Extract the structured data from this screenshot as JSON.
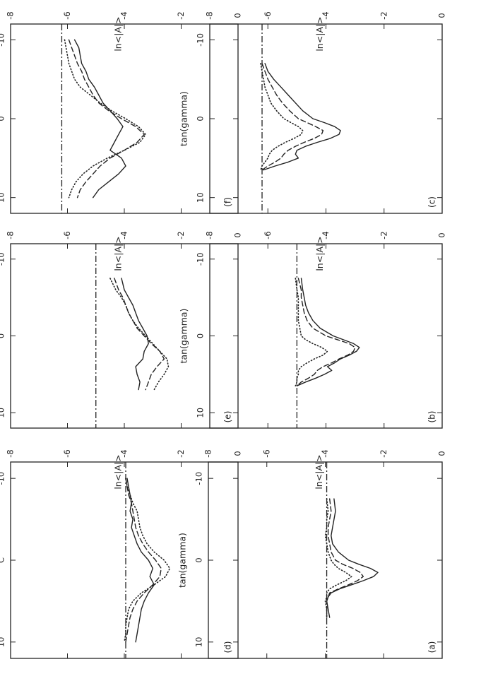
{
  "figure": {
    "orientation": "rotated 90 degrees counter-clockwise (landscape figure scanned in portrait)"
  },
  "style": {
    "ink": "#222222",
    "paper": "#ffffff",
    "line_styles": [
      "solid",
      "dashed",
      "dotted",
      "dash-dot"
    ]
  },
  "chart_data": [
    {
      "type": "line",
      "panel": "(a)",
      "xlabel": "tan(gamma)",
      "ylabel": "ln<|A|>",
      "xlim": [
        -12,
        12
      ],
      "ylim": [
        -8,
        0
      ],
      "xticks": [
        -10,
        0,
        10
      ],
      "xtick_labels": [
        "-10",
        "0",
        "10"
      ],
      "yticks": [
        0,
        -2,
        -4,
        -6,
        -8
      ],
      "ytick_labels": [
        "0",
        "-2",
        "-4",
        "-6",
        "-8"
      ],
      "baseline": -3.95,
      "series": [
        {
          "style": "solid",
          "x": [
            -7.5,
            -6,
            -5,
            -4,
            -3,
            -2,
            -1,
            0,
            0.5,
            1,
            1.5,
            2,
            2.5,
            3,
            3.5,
            4,
            4.5,
            5,
            6,
            7
          ],
          "y": [
            -3.7,
            -3.65,
            -3.7,
            -3.75,
            -3.8,
            -3.75,
            -3.55,
            -3.2,
            -2.85,
            -2.45,
            -2.2,
            -2.35,
            -2.7,
            -3.1,
            -3.5,
            -3.8,
            -3.9,
            -3.95,
            -3.9,
            -3.85
          ]
        },
        {
          "style": "dashed",
          "x": [
            -7.5,
            -6,
            -5,
            -4,
            -3,
            -2,
            -1,
            0,
            0.5,
            1,
            1.5,
            2,
            2.5,
            3,
            3.5,
            4,
            4.5,
            5,
            6,
            7
          ],
          "y": [
            -3.85,
            -3.8,
            -3.85,
            -3.9,
            -3.9,
            -3.85,
            -3.8,
            -3.65,
            -3.4,
            -3.05,
            -2.8,
            -2.7,
            -2.9,
            -3.2,
            -3.55,
            -3.85,
            -3.9,
            -3.95,
            -3.95,
            -3.95
          ]
        },
        {
          "style": "dotted",
          "x": [
            -7.5,
            -6,
            -5,
            -4,
            -3,
            -2,
            -1,
            0,
            0.5,
            1,
            1.5,
            2,
            2.5,
            3,
            3.5,
            4,
            4.5,
            5,
            6,
            7
          ],
          "y": [
            -3.95,
            -3.9,
            -3.95,
            -3.95,
            -4.0,
            -3.95,
            -3.9,
            -3.8,
            -3.7,
            -3.55,
            -3.3,
            -3.1,
            -3.3,
            -3.6,
            -3.85,
            -3.95,
            -3.95,
            -4.0,
            -3.95,
            -3.95
          ]
        }
      ]
    },
    {
      "type": "line",
      "panel": "(b)",
      "xlabel": "tan(gamma)",
      "ylabel": "ln<|A|>",
      "xlim": [
        -12,
        12
      ],
      "ylim": [
        -8,
        0
      ],
      "xticks": [
        -10,
        0,
        10
      ],
      "xtick_labels": [
        "-10",
        "0",
        "10"
      ],
      "yticks": [
        0,
        -2,
        -4,
        -6,
        -8
      ],
      "ytick_labels": [
        "0",
        "-2",
        "-4",
        "-6",
        "-8"
      ],
      "baseline": -5.0,
      "series": [
        {
          "style": "solid",
          "x": [
            -7.5,
            -6,
            -5,
            -4,
            -3,
            -2,
            -1,
            0,
            0.5,
            1,
            1.5,
            2,
            2.5,
            3,
            3.5,
            4,
            4.5,
            5,
            5.5,
            6,
            6.5
          ],
          "y": [
            -4.85,
            -4.8,
            -4.75,
            -4.7,
            -4.6,
            -4.45,
            -4.2,
            -3.75,
            -3.4,
            -3.05,
            -2.85,
            -2.95,
            -3.2,
            -3.5,
            -3.7,
            -3.95,
            -3.8,
            -4.05,
            -4.35,
            -4.7,
            -5.0
          ]
        },
        {
          "style": "dashed",
          "x": [
            -7.5,
            -6,
            -5,
            -4,
            -3,
            -2,
            -1,
            0,
            0.5,
            1,
            1.5,
            2,
            2.5,
            3,
            3.5,
            4,
            4.5,
            5,
            5.5,
            6,
            6.5
          ],
          "y": [
            -4.95,
            -4.85,
            -4.85,
            -4.8,
            -4.75,
            -4.65,
            -4.45,
            -4.0,
            -3.6,
            -3.2,
            -3.0,
            -3.05,
            -3.25,
            -3.55,
            -3.8,
            -4.1,
            -4.3,
            -4.4,
            -4.6,
            -4.85,
            -5.0
          ]
        },
        {
          "style": "dotted",
          "x": [
            -7.5,
            -6,
            -5,
            -4,
            -3,
            -2,
            -1,
            0,
            0.5,
            1,
            1.5,
            2,
            2.5,
            3,
            3.5,
            4,
            4.5,
            5,
            5.5,
            6,
            6.5
          ],
          "y": [
            -5.05,
            -5.0,
            -4.95,
            -4.95,
            -4.95,
            -4.95,
            -4.9,
            -4.85,
            -4.7,
            -4.45,
            -4.15,
            -3.95,
            -4.1,
            -4.4,
            -4.65,
            -4.85,
            -4.95,
            -4.95,
            -5.0,
            -5.0,
            -5.05
          ]
        }
      ]
    },
    {
      "type": "line",
      "panel": "(c)",
      "xlabel": "tan(gamma)",
      "ylabel": "ln<|A|>",
      "xlim": [
        -12,
        12
      ],
      "ylim": [
        -8,
        0
      ],
      "xticks": [
        -10,
        0,
        10
      ],
      "xtick_labels": [
        "-10",
        "0",
        "10"
      ],
      "yticks": [
        0,
        -2,
        -4,
        -6,
        -8
      ],
      "ytick_labels": [
        "0",
        "-2",
        "-4",
        "-6",
        "-8"
      ],
      "baseline": -6.2,
      "series": [
        {
          "style": "solid",
          "x": [
            -7,
            -6,
            -5,
            -4,
            -3,
            -2,
            -1,
            0,
            0.5,
            1,
            1.5,
            2,
            2.5,
            3,
            3.5,
            4,
            4.5,
            5,
            5.5,
            6,
            6.5
          ],
          "y": [
            -6.1,
            -6.0,
            -5.8,
            -5.55,
            -5.3,
            -5.05,
            -4.8,
            -4.45,
            -4.05,
            -3.7,
            -3.5,
            -3.55,
            -3.85,
            -4.3,
            -4.7,
            -5.0,
            -5.05,
            -4.95,
            -5.3,
            -5.75,
            -6.15
          ]
        },
        {
          "style": "dashed",
          "x": [
            -7,
            -6,
            -5,
            -4,
            -3,
            -2,
            -1,
            0,
            0.5,
            1,
            1.5,
            2,
            2.5,
            3,
            3.5,
            4,
            4.5,
            5,
            5.5,
            6,
            6.5
          ],
          "y": [
            -6.2,
            -6.1,
            -6.0,
            -5.85,
            -5.7,
            -5.5,
            -5.25,
            -4.95,
            -4.65,
            -4.35,
            -4.1,
            -4.15,
            -4.4,
            -4.75,
            -5.05,
            -5.3,
            -5.45,
            -5.55,
            -5.75,
            -6.0,
            -6.2
          ]
        },
        {
          "style": "dotted",
          "x": [
            -7,
            -6,
            -5,
            -4,
            -3,
            -2,
            -1,
            0,
            0.5,
            1,
            1.5,
            2,
            2.5,
            3,
            3.5,
            4,
            4.5,
            5,
            5.5,
            6,
            6.5
          ],
          "y": [
            -6.25,
            -6.2,
            -6.15,
            -6.1,
            -6.0,
            -5.9,
            -5.7,
            -5.45,
            -5.2,
            -4.95,
            -4.8,
            -4.85,
            -5.1,
            -5.4,
            -5.65,
            -5.85,
            -5.95,
            -6.0,
            -6.1,
            -6.2,
            -6.25
          ]
        }
      ]
    },
    {
      "type": "line",
      "panel": "(d)",
      "xlabel": "tan(gamma)",
      "ylabel": "ln<|A|>",
      "xlim": [
        -12,
        12
      ],
      "ylim": [
        -8,
        0
      ],
      "xticks": [
        -10,
        0,
        10
      ],
      "xtick_labels": [
        "-10",
        "C",
        "10"
      ],
      "yticks": [
        0,
        -2,
        -4,
        -6,
        -8
      ],
      "ytick_labels": [
        "0",
        "-2",
        "-4",
        "-6",
        "-8"
      ],
      "baseline": -3.95,
      "series": [
        {
          "style": "solid",
          "x": [
            -10,
            -9,
            -8,
            -7,
            -6,
            -5,
            -4,
            -3,
            -2,
            -1,
            0,
            1,
            2,
            3,
            4,
            5,
            6,
            7,
            8,
            9,
            10
          ],
          "y": [
            -3.9,
            -3.85,
            -3.8,
            -3.75,
            -3.8,
            -3.7,
            -3.75,
            -3.65,
            -3.55,
            -3.4,
            -3.15,
            -3.0,
            -3.1,
            -2.95,
            -3.15,
            -3.3,
            -3.4,
            -3.45,
            -3.5,
            -3.55,
            -3.6
          ]
        },
        {
          "style": "dashed",
          "x": [
            -10,
            -9,
            -8,
            -7,
            -6,
            -5,
            -4,
            -3,
            -2,
            -1,
            0,
            1,
            2,
            3,
            4,
            5,
            6,
            7,
            8,
            9,
            10
          ],
          "y": [
            -3.95,
            -3.9,
            -3.85,
            -3.75,
            -3.7,
            -3.65,
            -3.6,
            -3.5,
            -3.35,
            -3.15,
            -2.9,
            -2.7,
            -2.75,
            -3.0,
            -3.3,
            -3.55,
            -3.7,
            -3.8,
            -3.85,
            -3.9,
            -3.95
          ]
        },
        {
          "style": "dotted",
          "x": [
            -10,
            -9,
            -8,
            -7,
            -6,
            -5,
            -4,
            -3,
            -2,
            -1,
            0,
            1,
            2,
            3,
            4,
            5,
            6,
            7,
            8,
            9,
            10
          ],
          "y": [
            -3.95,
            -3.9,
            -3.8,
            -3.7,
            -3.55,
            -3.5,
            -3.45,
            -3.35,
            -3.2,
            -2.95,
            -2.6,
            -2.4,
            -2.55,
            -2.95,
            -3.4,
            -3.7,
            -3.85,
            -3.9,
            -3.95,
            -3.95,
            -4.0
          ]
        }
      ]
    },
    {
      "type": "line",
      "panel": "(e)",
      "xlabel": "tan(gamma)",
      "ylabel": "ln<|A|>",
      "xlim": [
        -12,
        12
      ],
      "ylim": [
        -8,
        0
      ],
      "xticks": [
        -10,
        0,
        10
      ],
      "xtick_labels": [
        "-10",
        "0",
        "10"
      ],
      "yticks": [
        0,
        -2,
        -4,
        -6,
        -8
      ],
      "ytick_labels": [
        "0",
        "-2",
        "-4",
        "-6",
        "-8"
      ],
      "baseline": -5.0,
      "series": [
        {
          "style": "solid",
          "x": [
            -7.5,
            -6,
            -5,
            -4,
            -3,
            -2,
            -1,
            0,
            1,
            2,
            3,
            4,
            5,
            6,
            7
          ],
          "y": [
            -4.1,
            -4.0,
            -3.85,
            -3.7,
            -3.6,
            -3.5,
            -3.35,
            -3.2,
            -3.15,
            -3.3,
            -3.35,
            -3.6,
            -3.55,
            -3.45,
            -3.5
          ]
        },
        {
          "style": "dashed",
          "x": [
            -7.5,
            -6,
            -5,
            -4,
            -3,
            -2,
            -1,
            0,
            1,
            2,
            3,
            4,
            5,
            6,
            7
          ],
          "y": [
            -4.35,
            -4.2,
            -4.05,
            -3.95,
            -3.85,
            -3.7,
            -3.55,
            -3.3,
            -3.05,
            -2.75,
            -2.6,
            -2.85,
            -3.05,
            -3.15,
            -3.25
          ]
        },
        {
          "style": "dotted",
          "x": [
            -7.5,
            -6,
            -5,
            -4,
            -3,
            -2,
            -1,
            0,
            1,
            2,
            3,
            4,
            5,
            6,
            7
          ],
          "y": [
            -4.5,
            -4.3,
            -4.1,
            -3.95,
            -3.85,
            -3.7,
            -3.5,
            -3.25,
            -3.0,
            -2.75,
            -2.5,
            -2.45,
            -2.6,
            -2.8,
            -2.95
          ]
        }
      ]
    },
    {
      "type": "line",
      "panel": "(f)",
      "xlabel": "tan(gamma)",
      "ylabel": "ln<|A|>",
      "xlim": [
        -12,
        12
      ],
      "ylim": [
        -8,
        0
      ],
      "xticks": [
        -10,
        0,
        10
      ],
      "xtick_labels": [
        "-10",
        "0",
        "10"
      ],
      "yticks": [
        0,
        -2,
        -4,
        -6,
        -8
      ],
      "ytick_labels": [
        "0",
        "-2",
        "-4",
        "-6",
        "-8"
      ],
      "baseline": -6.2,
      "series": [
        {
          "style": "solid",
          "x": [
            -10,
            -9,
            -8,
            -7,
            -6,
            -5,
            -4,
            -3,
            -2,
            -1,
            0,
            1,
            2,
            3,
            4,
            5,
            6,
            7,
            8,
            9,
            10
          ],
          "y": [
            -5.75,
            -5.6,
            -5.55,
            -5.5,
            -5.35,
            -5.25,
            -5.05,
            -4.9,
            -4.75,
            -4.5,
            -4.25,
            -4.05,
            -4.2,
            -4.35,
            -4.5,
            -4.1,
            -3.95,
            -4.2,
            -4.55,
            -4.9,
            -5.1
          ]
        },
        {
          "style": "dashed",
          "x": [
            -10,
            -9,
            -8,
            -7,
            -6,
            -5,
            -4,
            -3,
            -2,
            -1,
            0,
            1,
            2,
            3,
            4,
            5,
            6,
            7,
            8,
            9,
            10
          ],
          "y": [
            -5.95,
            -5.85,
            -5.75,
            -5.65,
            -5.5,
            -5.4,
            -5.25,
            -5.1,
            -4.9,
            -4.55,
            -4.1,
            -3.6,
            -3.3,
            -3.55,
            -4.0,
            -4.5,
            -4.85,
            -5.1,
            -5.35,
            -5.55,
            -5.65
          ]
        },
        {
          "style": "dotted",
          "x": [
            -10,
            -9,
            -8,
            -7,
            -6,
            -5,
            -4,
            -3,
            -2,
            -1,
            0,
            1,
            2,
            3,
            4,
            5,
            6,
            7,
            8,
            9,
            10
          ],
          "y": [
            -6.1,
            -6.05,
            -6.0,
            -5.95,
            -5.85,
            -5.75,
            -5.55,
            -5.2,
            -4.85,
            -4.45,
            -3.95,
            -3.5,
            -3.25,
            -3.45,
            -4.0,
            -4.6,
            -5.1,
            -5.45,
            -5.7,
            -5.85,
            -5.95
          ]
        }
      ]
    }
  ]
}
